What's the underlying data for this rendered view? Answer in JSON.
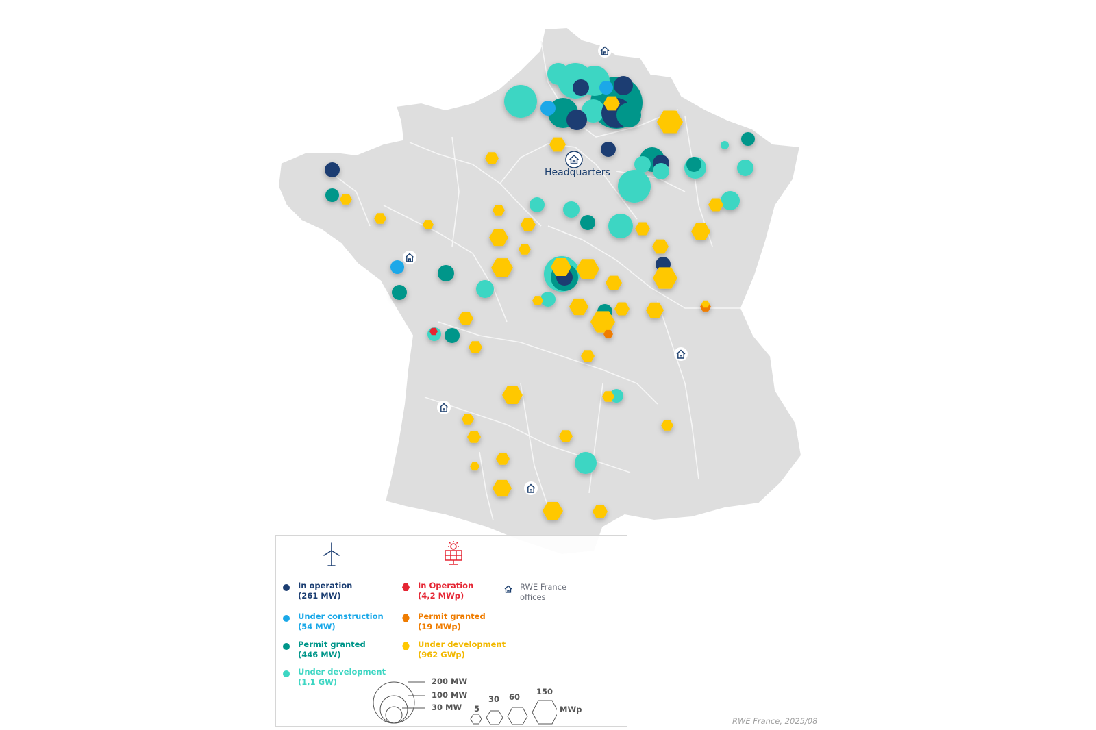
{
  "headquarters_label": "Headquarters",
  "source": "RWE France, 2025/08",
  "colors": {
    "wind_in_operation": "#1c3e72",
    "wind_under_construction": "#1aa8e8",
    "wind_permit_granted": "#00968a",
    "wind_under_development": "#3dd6c3",
    "solar_in_operation": "#e52533",
    "solar_permit_granted": "#ef7c00",
    "solar_under_development": "#ffc800",
    "office": "#1c3f6e",
    "map_fill": "#dedede",
    "map_border": "#ffffff"
  },
  "legend": {
    "wind_icon": "wind-turbine-icon",
    "solar_icon": "solar-panel-icon",
    "wind": [
      {
        "label": "In operation",
        "value": "(261 MW)",
        "color": "#1c3e72"
      },
      {
        "label": "Under construction",
        "value": "(54 MW)",
        "color": "#1aa8e8"
      },
      {
        "label": "Permit granted",
        "value": "(446 MW)",
        "color": "#00968a"
      },
      {
        "label": "Under development",
        "value": "(1,1 GW)",
        "color": "#3dd6c3"
      }
    ],
    "solar": [
      {
        "label": "In Operation",
        "value": "(4,2 MWp)",
        "color": "#e52533"
      },
      {
        "label": "Permit granted",
        "value": "(19 MWp)",
        "color": "#ef7c00"
      },
      {
        "label": "Under development",
        "value": "(962 GWp)",
        "color": "#ffc800"
      }
    ],
    "office": {
      "line1": "RWE France",
      "line2": "offices",
      "icon": "house-icon"
    },
    "wind_sizes": [
      "200 MW",
      "100 MW",
      "30 MW"
    ],
    "solar_sizes": [
      "5",
      "30",
      "60",
      "150"
    ],
    "solar_unit": "MWp"
  }
}
